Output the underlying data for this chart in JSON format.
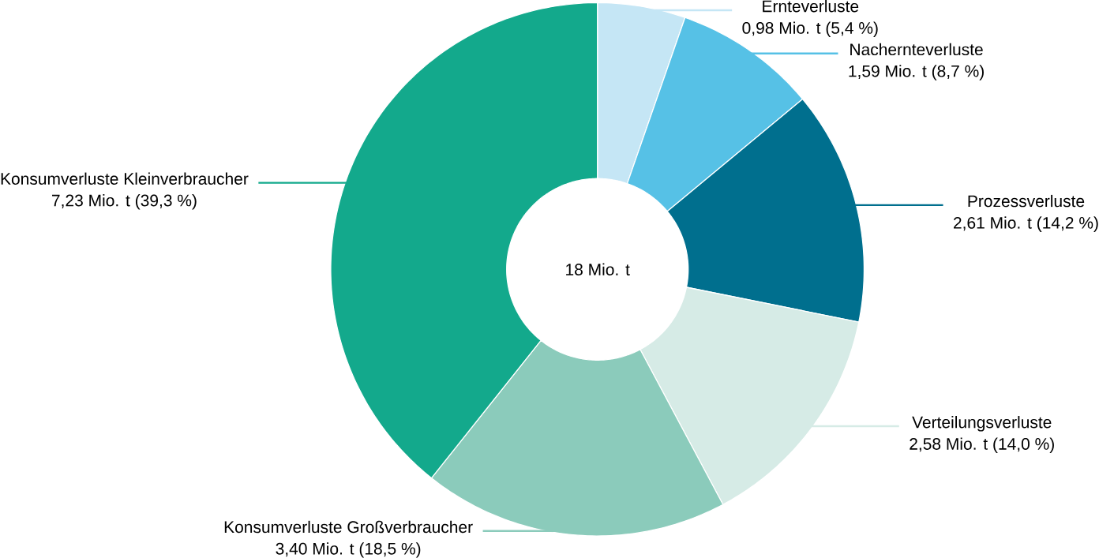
{
  "chart_data": {
    "type": "donut",
    "categories": [
      "Ernteverluste",
      "Nachernteverluste",
      "Prozessverluste",
      "Verteilungsverluste",
      "Konsumverluste Großverbraucher",
      "Konsumverluste Kleinverbraucher"
    ],
    "values": [
      0.98,
      1.59,
      2.61,
      2.58,
      3.4,
      7.23
    ],
    "value_labels": [
      "0,98 Mio. t (5,4 %)",
      "1,59 Mio. t (8,7 %)",
      "2,61 Mio. t (14,2 %)",
      "2,58 Mio. t (14,0 %)",
      "3,40 Mio. t (18,5 %)",
      "7,23 Mio. t (39,3 %)"
    ],
    "colors": [
      "#c5e6f5",
      "#56c1e6",
      "#006f8e",
      "#d6ebe6",
      "#8bcbbb",
      "#13a98c"
    ],
    "annotations": [
      "18 Mio. t"
    ]
  }
}
